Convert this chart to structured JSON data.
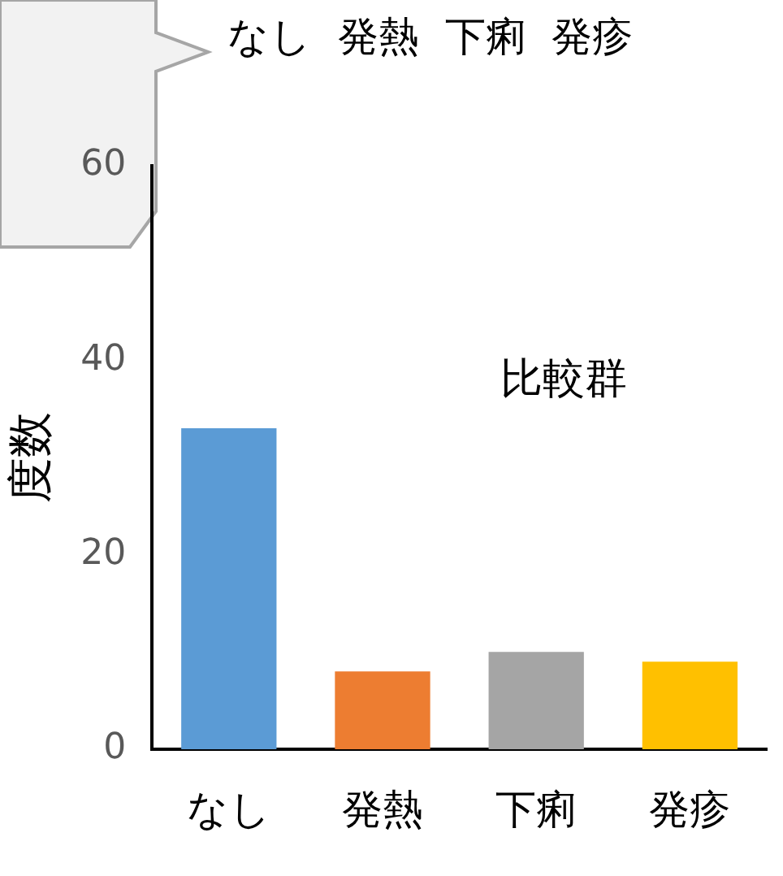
{
  "chart_data": {
    "type": "bar",
    "ylabel": "度数",
    "categories": [
      "なし",
      "発熱",
      "下痢",
      "発疹"
    ],
    "values": [
      33,
      8,
      10,
      9
    ],
    "colors": [
      "#5b9bd5",
      "#ed7d31",
      "#a5a5a5",
      "#ffc000"
    ],
    "ylim": [
      0,
      60
    ],
    "yticks": [
      0,
      20,
      40,
      60
    ],
    "grid": false,
    "legend": false,
    "annotations": [
      "なし  発熱  下痢  発疹",
      "比較群"
    ]
  }
}
